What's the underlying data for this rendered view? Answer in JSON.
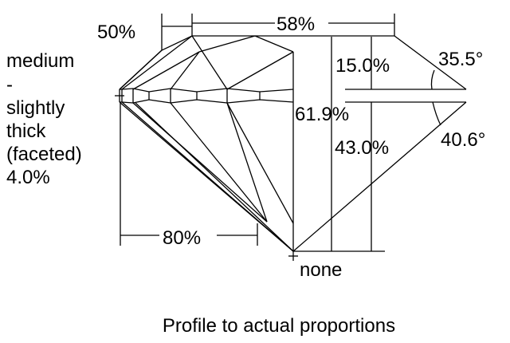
{
  "labels": {
    "lower_girdle_pct": "50%",
    "table_pct": "58%",
    "crown_height_pct": "15.0%",
    "crown_angle": "35.5°",
    "total_depth_pct": "61.9%",
    "pavilion_depth_pct": "43.0%",
    "pavilion_angle": "40.6°",
    "star_length_pct": "80%",
    "culet": "none",
    "girdle_lines": [
      "medium",
      "-",
      "slightly",
      "thick",
      "(faceted)",
      "4.0%"
    ]
  },
  "caption": "Profile to actual proportions",
  "colors": {
    "line": "#000000",
    "background": "#ffffff"
  }
}
